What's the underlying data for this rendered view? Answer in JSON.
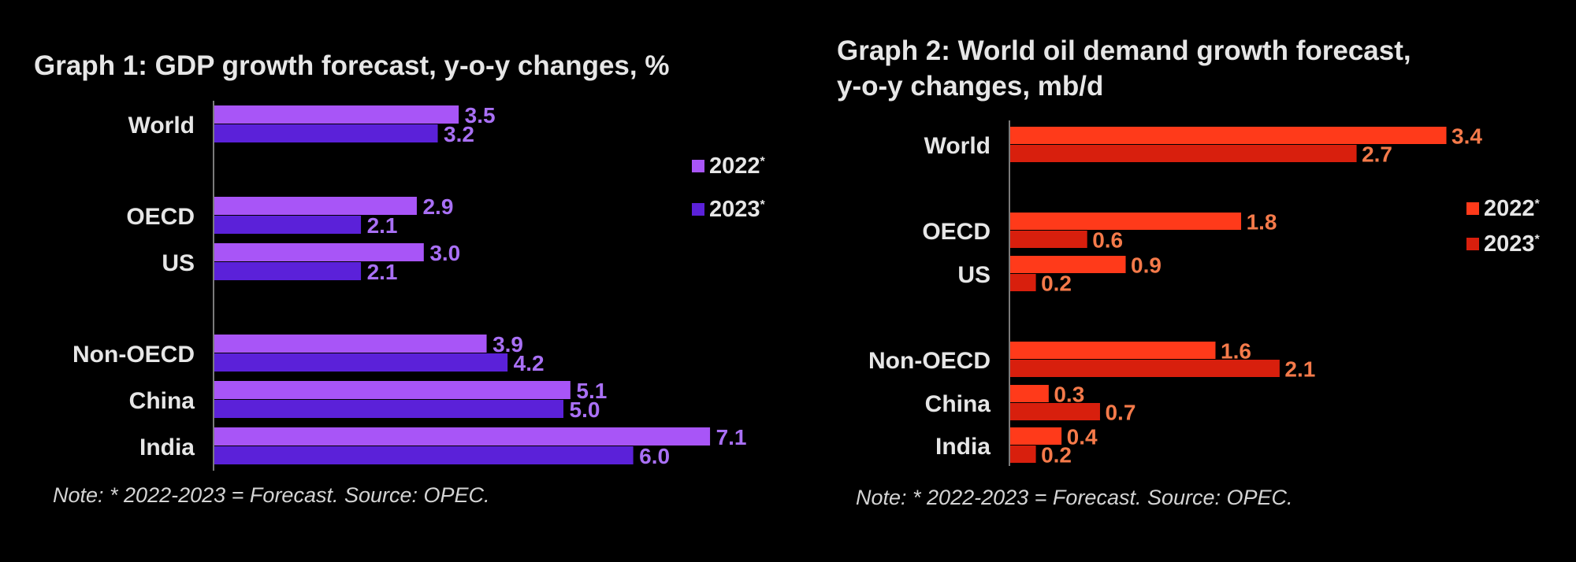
{
  "chart_data": [
    {
      "type": "bar",
      "orientation": "horizontal",
      "title": "Graph 1: GDP growth forecast, y-o-y changes, %",
      "categories": [
        "World",
        "OECD",
        "US",
        "Non-OECD",
        "China",
        "India"
      ],
      "series": [
        {
          "name": "2022",
          "marker": "*",
          "color": "#a855f7",
          "label_color": "#a970f5",
          "values": [
            3.5,
            2.9,
            3.0,
            3.9,
            5.1,
            7.1
          ]
        },
        {
          "name": "2023",
          "marker": "*",
          "color": "#5b21d9",
          "label_color": "#a970f5",
          "values": [
            3.2,
            2.1,
            2.1,
            4.2,
            5.0,
            6.0
          ]
        }
      ],
      "value_labels": [
        [
          "3.5",
          "2.9",
          "3.0",
          "3.9",
          "5.1",
          "7.1"
        ],
        [
          "3.2",
          "2.1",
          "2.1",
          "4.2",
          "5.0",
          "6.0"
        ]
      ],
      "xlim": [
        0,
        8
      ],
      "grid": false,
      "legend_position": "right",
      "note": "Note: * 2022-2023 = Forecast. Source: OPEC."
    },
    {
      "type": "bar",
      "orientation": "horizontal",
      "title": [
        "Graph 2: World oil demand growth forecast,",
        "y-o-y changes, mb/d"
      ],
      "categories": [
        "World",
        "OECD",
        "US",
        "Non-OECD",
        "China",
        "India"
      ],
      "series": [
        {
          "name": "2022",
          "marker": "*",
          "color": "#ff3a1a",
          "label_color": "#f57a4a",
          "values": [
            3.4,
            1.8,
            0.9,
            1.6,
            0.3,
            0.4
          ]
        },
        {
          "name": "2023",
          "marker": "*",
          "color": "#d81f0d",
          "label_color": "#f57a4a",
          "values": [
            2.7,
            0.6,
            0.2,
            2.1,
            0.7,
            0.2
          ]
        }
      ],
      "value_labels": [
        [
          "3.4",
          "1.8",
          "0.9",
          "1.6",
          "0.3",
          "0.4"
        ],
        [
          "2.7",
          "0.6",
          "0.2",
          "2.1",
          "0.7",
          "0.2"
        ]
      ],
      "xlim": [
        0,
        4
      ],
      "grid": false,
      "legend_position": "right",
      "note": "Note: * 2022-2023 = Forecast. Source: OPEC."
    }
  ]
}
